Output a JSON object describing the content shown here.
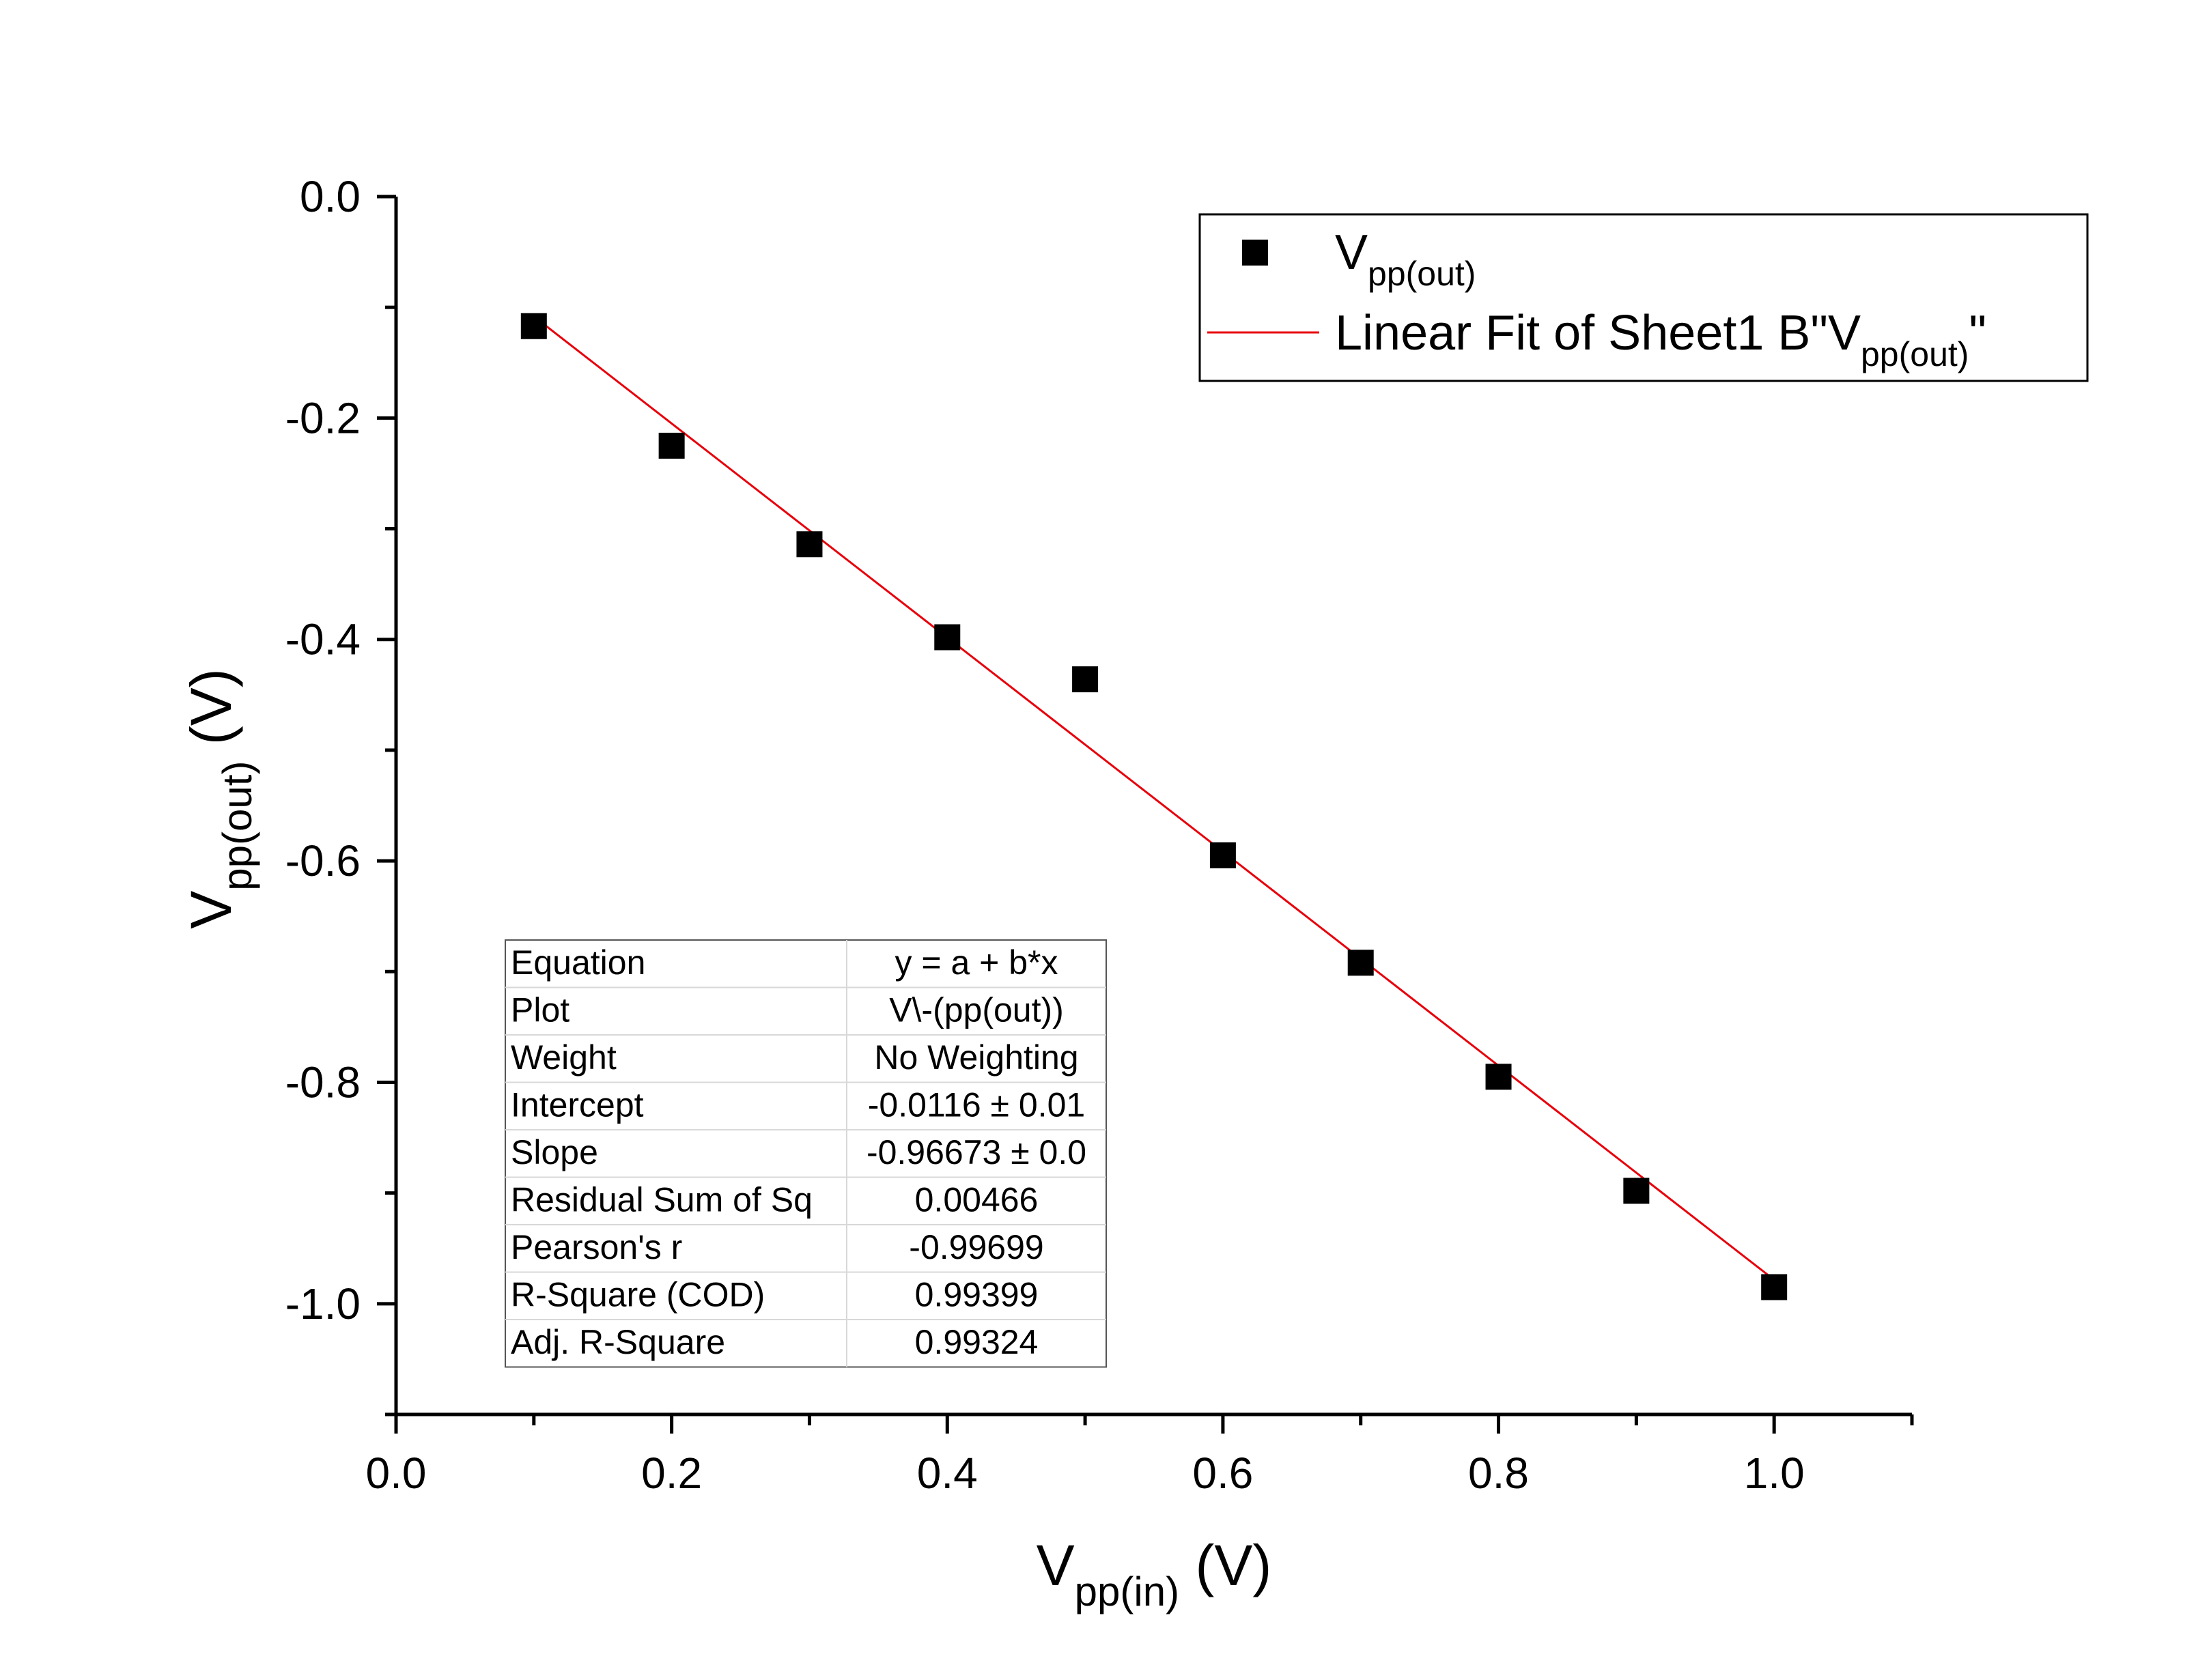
{
  "chart_data": {
    "type": "scatter",
    "x": [
      0.1,
      0.2,
      0.3,
      0.4,
      0.5,
      0.6,
      0.7,
      0.8,
      0.9,
      1.0
    ],
    "series": [
      {
        "name_main": "V",
        "name_sub": "pp(out)",
        "marker": "square",
        "color": "#000000",
        "values": [
          -0.117,
          -0.225,
          -0.314,
          -0.398,
          -0.436,
          -0.595,
          -0.692,
          -0.795,
          -0.898,
          -0.985
        ]
      }
    ],
    "fit": {
      "label_pre": "Linear Fit of Sheet1 B\"V",
      "label_sub": "pp(out)",
      "label_post": "\"",
      "color": "#e8000b",
      "intercept": -0.0116,
      "slope": -0.96673,
      "x_range": [
        0.1,
        1.0
      ]
    },
    "xlabel_main": "V",
    "xlabel_sub": "pp(in)",
    "xlabel_unit": " (V)",
    "ylabel_main": "V",
    "ylabel_sub": "pp(out)",
    "ylabel_unit": " (V)",
    "xlim": [
      0.0,
      1.1
    ],
    "ylim": [
      -1.1,
      0.0
    ],
    "xticks": [
      "0.0",
      "0.2",
      "0.4",
      "0.6",
      "0.8",
      "1.0"
    ],
    "yticks": [
      "0.0",
      "-0.2",
      "-0.4",
      "-0.6",
      "-0.8",
      "-1.0"
    ],
    "grid": false,
    "legend_position": "top-right",
    "stats_table": [
      [
        "Equation",
        "y = a + b*x"
      ],
      [
        "Plot",
        "V\\-(pp(out))"
      ],
      [
        "Weight",
        "No Weighting"
      ],
      [
        "Intercept",
        "-0.0116 ± 0.01"
      ],
      [
        "Slope",
        "-0.96673 ± 0.0"
      ],
      [
        "Residual Sum of Sq",
        "0.00466"
      ],
      [
        "Pearson's r",
        "-0.99699"
      ],
      [
        "R-Square (COD)",
        "0.99399"
      ],
      [
        "Adj. R-Square",
        "0.99324"
      ]
    ]
  }
}
